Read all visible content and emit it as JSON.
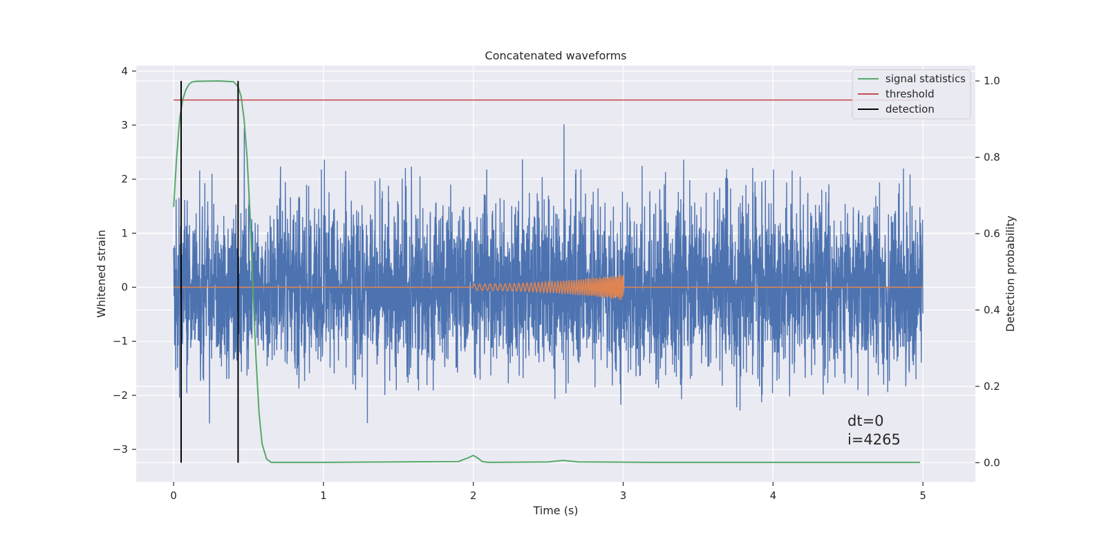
{
  "chart_data": {
    "type": "line",
    "title": "Concatenated waveforms",
    "xlabel": "Time (s)",
    "ylabel": "Whitened strain",
    "y2label": "Detection probability",
    "xlim": [
      -0.25,
      5.35
    ],
    "ylim": [
      -3.6,
      4.1
    ],
    "y2lim": [
      -0.05,
      1.04
    ],
    "xticks": [
      0,
      1,
      2,
      3,
      4,
      5
    ],
    "yticks": [
      -3,
      -2,
      -1,
      0,
      1,
      2,
      3,
      4
    ],
    "y2ticks": [
      0.0,
      0.2,
      0.4,
      0.6,
      0.8,
      1.0
    ],
    "xtick_labels": [
      "0",
      "1",
      "2",
      "3",
      "4",
      "5"
    ],
    "ytick_labels": [
      "−3",
      "−2",
      "−1",
      "0",
      "1",
      "2",
      "3",
      "4"
    ],
    "y2tick_labels": [
      "0.0",
      "0.2",
      "0.4",
      "0.6",
      "0.8",
      "1.0"
    ],
    "grid": true,
    "legend_position": "top-right",
    "colors": {
      "background": "#eaeaf2",
      "grid": "#ffffff",
      "strain": "#4c72b0",
      "injection": "#dd8452",
      "signal_statistics": "#55a868",
      "threshold": "#c44e52",
      "detection": "#000000"
    },
    "series": [
      {
        "name": "whitened strain (noise)",
        "axis": "left",
        "x_range": [
          0,
          5
        ],
        "amplitude_envelope": [
          -3.25,
          3.75
        ]
      },
      {
        "name": "injected waveform",
        "axis": "left",
        "x_range": [
          0,
          5
        ],
        "chirp_start": 2.0,
        "chirp_end": 3.0,
        "amplitude_start": 0.06,
        "amplitude_end": 0.25
      },
      {
        "name": "signal statistics",
        "axis": "right",
        "points": [
          [
            0.0,
            0.67
          ],
          [
            0.02,
            0.8
          ],
          [
            0.04,
            0.9
          ],
          [
            0.06,
            0.95
          ],
          [
            0.08,
            0.975
          ],
          [
            0.1,
            0.99
          ],
          [
            0.12,
            0.997
          ],
          [
            0.15,
            0.999
          ],
          [
            0.3,
            1.0
          ],
          [
            0.4,
            0.998
          ],
          [
            0.43,
            0.985
          ],
          [
            0.45,
            0.96
          ],
          [
            0.47,
            0.9
          ],
          [
            0.49,
            0.8
          ],
          [
            0.51,
            0.65
          ],
          [
            0.53,
            0.45
          ],
          [
            0.55,
            0.27
          ],
          [
            0.57,
            0.13
          ],
          [
            0.59,
            0.05
          ],
          [
            0.62,
            0.01
          ],
          [
            0.65,
            0.001
          ],
          [
            1.0,
            0.001
          ],
          [
            1.9,
            0.003
          ],
          [
            1.96,
            0.012
          ],
          [
            2.0,
            0.019
          ],
          [
            2.03,
            0.012
          ],
          [
            2.06,
            0.003
          ],
          [
            2.1,
            0.001
          ],
          [
            2.5,
            0.002
          ],
          [
            2.6,
            0.006
          ],
          [
            2.7,
            0.002
          ],
          [
            3.2,
            0.001
          ],
          [
            4.0,
            0.001
          ],
          [
            4.98,
            0.001
          ]
        ]
      },
      {
        "name": "threshold",
        "axis": "right",
        "value": 0.95,
        "x_range": [
          0,
          4.98
        ]
      },
      {
        "name": "detection",
        "axis": "right",
        "x": [
          0.05,
          0.43
        ],
        "y_range": [
          0.0,
          1.0
        ]
      }
    ],
    "legend": [
      "signal statistics",
      "threshold",
      "detection"
    ],
    "annotations": [
      "dt=0",
      "i=4265"
    ]
  }
}
